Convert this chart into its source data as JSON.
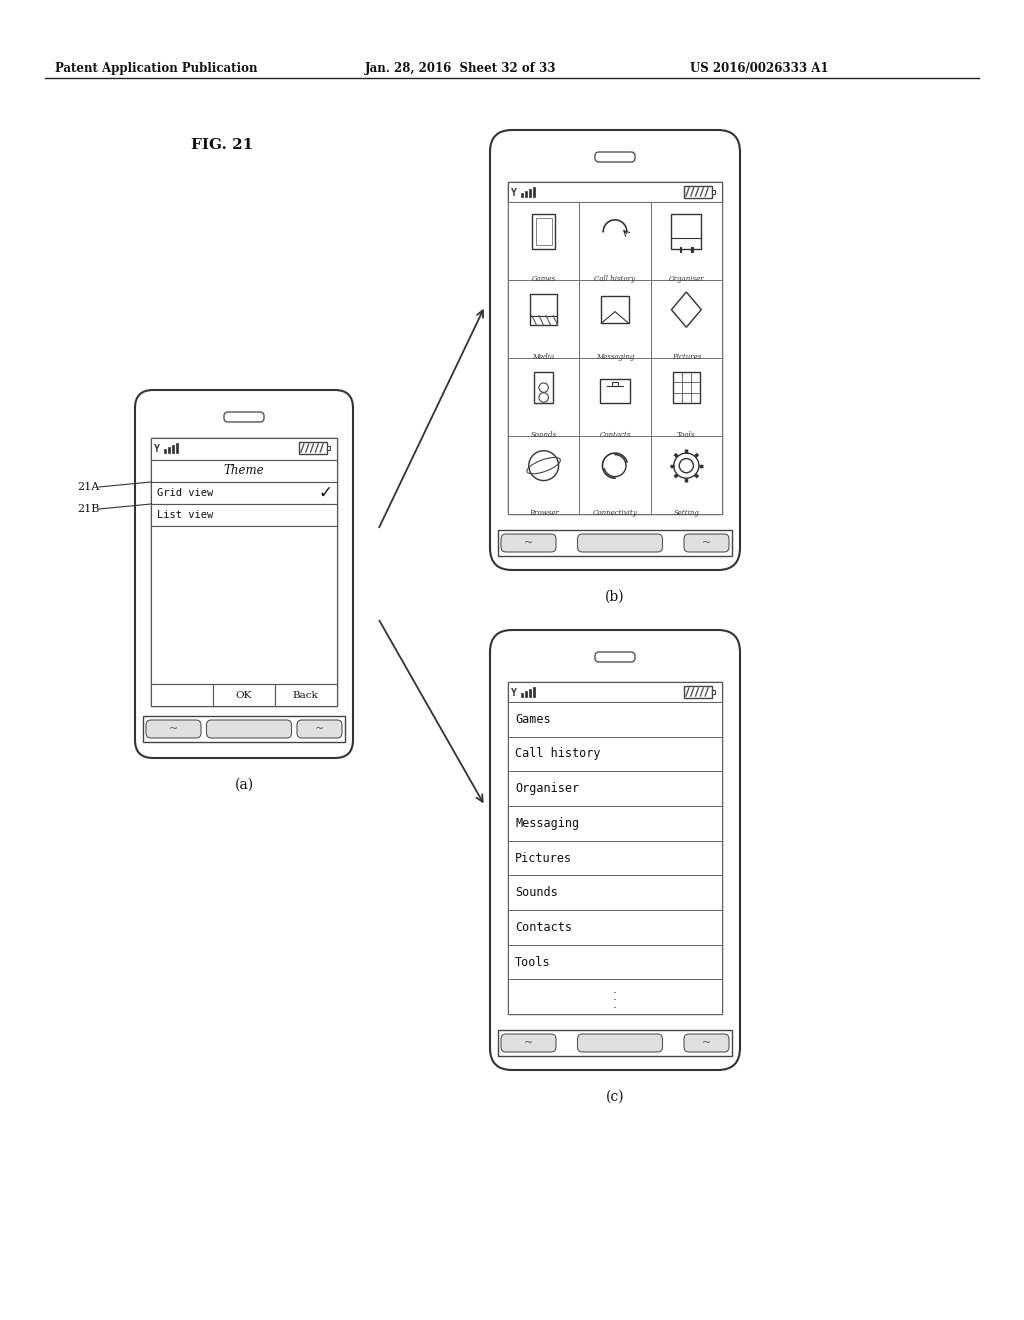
{
  "bg_color": "#ffffff",
  "header_text": "Patent Application Publication",
  "header_date": "Jan. 28, 2016  Sheet 32 of 33",
  "header_patent": "US 2016/0026333 A1",
  "fig_label": "FIG. 21",
  "phone_a_label": "(a)",
  "phone_b_label": "(b)",
  "phone_c_label": "(c)",
  "label_21A": "21A",
  "label_21B": "21B",
  "grid_items": [
    [
      "Games",
      "Call history",
      "Organiser"
    ],
    [
      "Media",
      "Messaging",
      "Pictures"
    ],
    [
      "Sounds",
      "Contacts",
      "Tools"
    ],
    [
      "Browser",
      "Connectivity",
      "Setting"
    ]
  ],
  "list_items": [
    "Games",
    "Call history",
    "Organiser",
    "Messaging",
    "Pictures",
    "Sounds",
    "Contacts",
    "Tools"
  ]
}
